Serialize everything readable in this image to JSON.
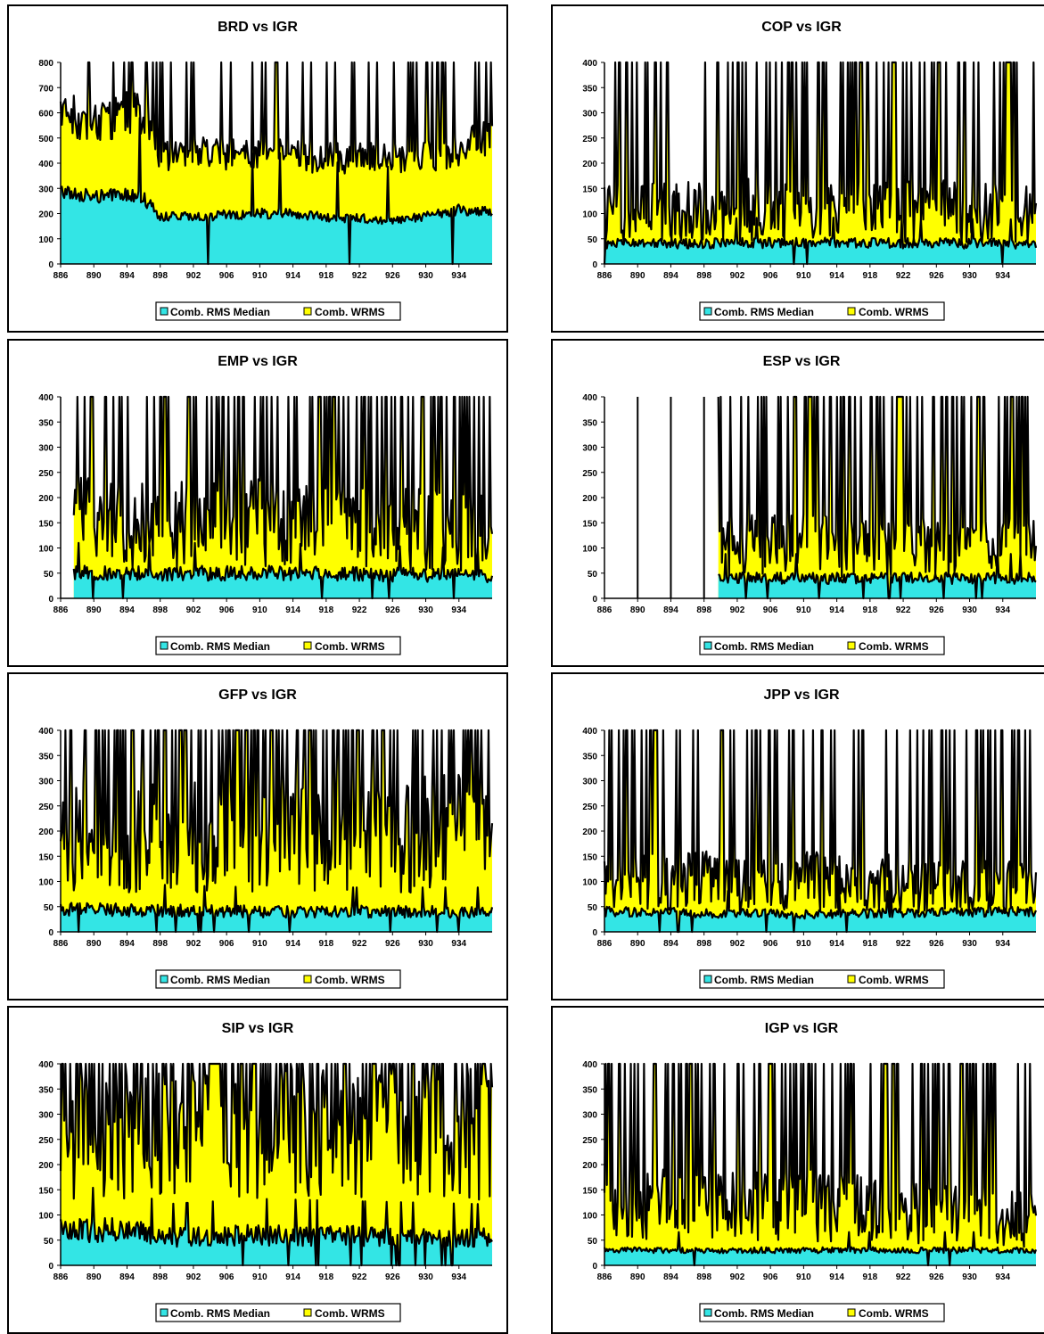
{
  "legend": {
    "median_label": "Comb. RMS Median",
    "wrms_label": "Comb. WRMS"
  },
  "colors": {
    "median": "#33E5E5",
    "wrms": "#FFFF00",
    "line": "#000000"
  },
  "x_ticks": [
    "886",
    "890",
    "894",
    "898",
    "902",
    "906",
    "910",
    "914",
    "918",
    "922",
    "926",
    "930",
    "934"
  ],
  "chart_data": [
    {
      "type": "area",
      "title": "BRD vs IGR",
      "xlim": [
        886,
        938
      ],
      "ylim": [
        0,
        800
      ],
      "y_ticks": [
        "0",
        "100",
        "200",
        "300",
        "400",
        "500",
        "600",
        "700",
        "800"
      ],
      "series": [
        {
          "name": "Comb. RMS Median",
          "profile": [
            [
              886,
              290
            ],
            [
              890,
              265
            ],
            [
              894,
              275
            ],
            [
              896,
              260
            ],
            [
              898,
              190
            ],
            [
              902,
              185
            ],
            [
              906,
              195
            ],
            [
              910,
              200
            ],
            [
              914,
              200
            ],
            [
              918,
              185
            ],
            [
              922,
              180
            ],
            [
              926,
              175
            ],
            [
              930,
              190
            ],
            [
              934,
              215
            ],
            [
              938,
              210
            ]
          ],
          "noise": 0.1,
          "spikes": 0.02
        },
        {
          "name": "Comb. WRMS",
          "profile": [
            [
              886,
              600
            ],
            [
              890,
              560
            ],
            [
              894,
              600
            ],
            [
              896,
              600
            ],
            [
              898,
              420
            ],
            [
              902,
              440
            ],
            [
              906,
              440
            ],
            [
              910,
              430
            ],
            [
              914,
              430
            ],
            [
              918,
              420
            ],
            [
              922,
              420
            ],
            [
              926,
              420
            ],
            [
              930,
              430
            ],
            [
              934,
              450
            ],
            [
              938,
              520
            ]
          ],
          "noise": 0.15,
          "spikes": 0.12
        }
      ]
    },
    {
      "type": "area",
      "title": "COP vs IGR",
      "xlim": [
        886,
        938
      ],
      "ylim": [
        0,
        400
      ],
      "y_ticks": [
        "0",
        "50",
        "100",
        "150",
        "200",
        "250",
        "300",
        "350",
        "400"
      ],
      "series": [
        {
          "name": "Comb. RMS Median",
          "profile": [
            [
              886,
              40
            ],
            [
              910,
              42
            ],
            [
              938,
              40
            ]
          ],
          "noise": 0.25,
          "spikes": 0.03
        },
        {
          "name": "Comb. WRMS",
          "profile": [
            [
              886,
              100
            ],
            [
              910,
              110
            ],
            [
              938,
              100
            ]
          ],
          "noise": 0.6,
          "spikes": 0.22
        }
      ]
    },
    {
      "type": "area",
      "title": "EMP vs IGR",
      "xlim": [
        886,
        938
      ],
      "ylim": [
        0,
        400
      ],
      "y_ticks": [
        "0",
        "50",
        "100",
        "150",
        "200",
        "250",
        "300",
        "350",
        "400"
      ],
      "series": [
        {
          "name": "Comb. RMS Median",
          "profile": [
            [
              887.5,
              50
            ],
            [
              910,
              50
            ],
            [
              938,
              45
            ]
          ],
          "noise": 0.3,
          "spikes": 0.05
        },
        {
          "name": "Comb. WRMS",
          "profile": [
            [
              887.5,
              150
            ],
            [
              910,
              150
            ],
            [
              938,
              130
            ]
          ],
          "noise": 0.6,
          "spikes": 0.28
        }
      ]
    },
    {
      "type": "area",
      "title": "ESP vs IGR",
      "xlim": [
        886,
        938
      ],
      "ylim": [
        0,
        400
      ],
      "y_ticks": [
        "0",
        "50",
        "100",
        "150",
        "200",
        "250",
        "300",
        "350",
        "400"
      ],
      "series": [
        {
          "name": "Comb. RMS Median",
          "profile": [
            [
              899.6,
              40
            ],
            [
              918,
              40
            ],
            [
              938,
              40
            ]
          ],
          "noise": 0.3,
          "spikes": 0.05
        },
        {
          "name": "Comb. WRMS",
          "profile": [
            [
              899.6,
              110
            ],
            [
              918,
              100
            ],
            [
              938,
              100
            ]
          ],
          "noise": 0.6,
          "spikes": 0.28
        }
      ],
      "isolated_spikes": [
        890,
        894,
        898
      ]
    },
    {
      "type": "area",
      "title": "GFP vs IGR",
      "xlim": [
        886,
        938
      ],
      "ylim": [
        0,
        400
      ],
      "y_ticks": [
        "0",
        "50",
        "100",
        "150",
        "200",
        "250",
        "300",
        "350",
        "400"
      ],
      "series": [
        {
          "name": "Comb. RMS Median",
          "profile": [
            [
              886,
              45
            ],
            [
              910,
              40
            ],
            [
              938,
              40
            ]
          ],
          "noise": 0.3,
          "spikes": 0.06
        },
        {
          "name": "Comb. WRMS",
          "profile": [
            [
              886,
              200
            ],
            [
              910,
              180
            ],
            [
              938,
              200
            ]
          ],
          "noise": 0.6,
          "spikes": 0.35
        }
      ]
    },
    {
      "type": "area",
      "title": "JPP vs IGR",
      "xlim": [
        886,
        938
      ],
      "ylim": [
        0,
        400
      ],
      "y_ticks": [
        "0",
        "50",
        "100",
        "150",
        "200",
        "250",
        "300",
        "350",
        "400"
      ],
      "series": [
        {
          "name": "Comb. RMS Median",
          "profile": [
            [
              886,
              40
            ],
            [
              910,
              35
            ],
            [
              938,
              40
            ]
          ],
          "noise": 0.25,
          "spikes": 0.03
        },
        {
          "name": "Comb. WRMS",
          "profile": [
            [
              886,
              100
            ],
            [
              910,
              100
            ],
            [
              938,
              90
            ]
          ],
          "noise": 0.6,
          "spikes": 0.25
        }
      ]
    },
    {
      "type": "area",
      "title": "SIP vs IGR",
      "xlim": [
        886,
        938
      ],
      "ylim": [
        0,
        400
      ],
      "y_ticks": [
        "0",
        "50",
        "100",
        "150",
        "200",
        "250",
        "300",
        "350",
        "400"
      ],
      "series": [
        {
          "name": "Comb. RMS Median",
          "profile": [
            [
              886,
              70
            ],
            [
              895,
              70
            ],
            [
              898,
              55
            ],
            [
              910,
              60
            ],
            [
              938,
              55
            ]
          ],
          "noise": 0.35,
          "spikes": 0.08
        },
        {
          "name": "Comb. WRMS",
          "profile": [
            [
              886,
              250
            ],
            [
              910,
              260
            ],
            [
              938,
              260
            ]
          ],
          "noise": 0.5,
          "spikes": 0.4
        }
      ]
    },
    {
      "type": "area",
      "title": "IGP vs IGR",
      "xlim": [
        886,
        938
      ],
      "ylim": [
        0,
        400
      ],
      "y_ticks": [
        "0",
        "50",
        "100",
        "150",
        "200",
        "250",
        "300",
        "350",
        "400"
      ],
      "series": [
        {
          "name": "Comb. RMS Median",
          "profile": [
            [
              886,
              30
            ],
            [
              910,
              30
            ],
            [
              938,
              30
            ]
          ],
          "noise": 0.2,
          "spikes": 0.02
        },
        {
          "name": "Comb. WRMS",
          "profile": [
            [
              886,
              120
            ],
            [
              910,
              120
            ],
            [
              938,
              90
            ]
          ],
          "noise": 0.6,
          "spikes": 0.3
        }
      ]
    }
  ]
}
